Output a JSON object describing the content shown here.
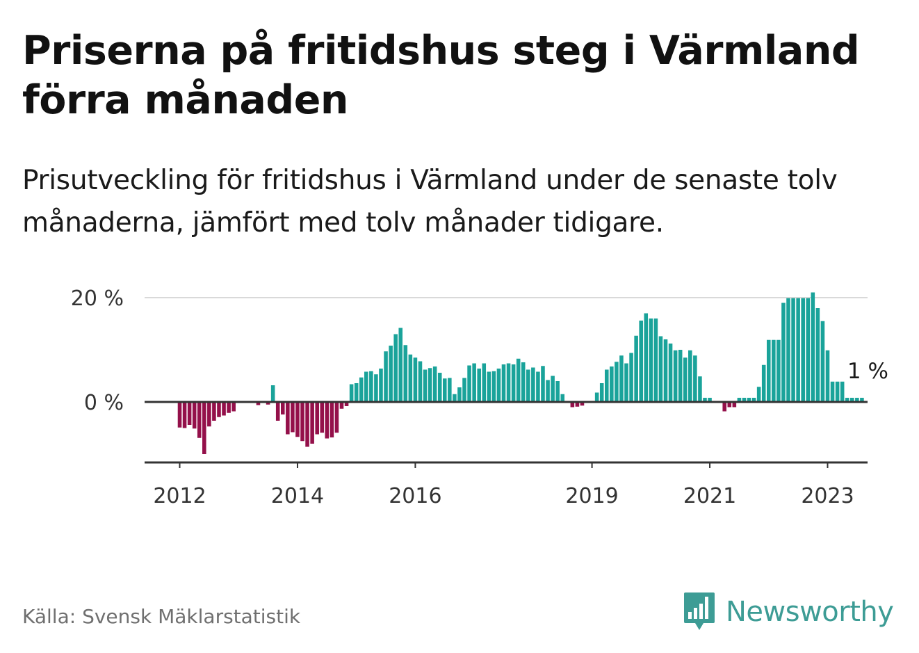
{
  "title": "Priserna på fritidshus steg i Värmland förra månaden",
  "subtitle": "Prisutveckling för fritidshus i Värmland under de senaste tolv månaderna, jämfört med tolv månader tidigare.",
  "source": "Källa: Svensk Mäklarstatistik",
  "brand": {
    "name": "Newsworthy",
    "icon": "bar-chart-speech-bubble-icon",
    "color": "#3d9c95"
  },
  "colors": {
    "positive": "#1aa39a",
    "negative": "#94104a",
    "baseline": "#333333",
    "grid": "#d9d9d9"
  },
  "chart_data": {
    "type": "bar",
    "title": "",
    "xlabel": "",
    "ylabel": "",
    "unit": "%",
    "ylim": [
      -10.8,
      20.5
    ],
    "y_ticks": [
      {
        "value": 0,
        "label": "0 %"
      },
      {
        "value": 20,
        "label": "20 %"
      }
    ],
    "x_ticks": [
      {
        "date": "2012-01",
        "label": "2012"
      },
      {
        "date": "2014-01",
        "label": "2014"
      },
      {
        "date": "2016-01",
        "label": "2016"
      },
      {
        "date": "2019-01",
        "label": "2019"
      },
      {
        "date": "2021-01",
        "label": "2021"
      },
      {
        "date": "2023-01",
        "label": "2023"
      }
    ],
    "grid": "horizontal",
    "last_value_label": "1 %",
    "series": [
      {
        "start": "2011-12",
        "frequency": "monthly",
        "values": [
          null,
          -4.9,
          -5.0,
          -4.4,
          -5.1,
          -6.9,
          -10.0,
          -4.7,
          -3.6,
          -2.9,
          -2.6,
          -2.1,
          -1.8,
          0.2,
          0,
          0,
          0,
          -0.6,
          -0.2,
          -0.5,
          3.2,
          -3.6,
          -2.4,
          -6.2,
          -5.8,
          -6.7,
          -7.5,
          -8.6,
          -8.0,
          -6.2,
          -5.9,
          -7.0,
          -6.8,
          -5.9,
          -1.3,
          -0.8,
          3.4,
          3.6,
          4.7,
          5.8,
          5.9,
          5.3,
          6.4,
          9.7,
          10.8,
          13.0,
          14.2,
          10.9,
          9.1,
          8.5,
          7.8,
          6.2,
          6.5,
          6.8,
          5.6,
          4.5,
          4.6,
          1.5,
          2.8,
          4.6,
          7.0,
          7.4,
          6.4,
          7.4,
          5.8,
          5.9,
          6.4,
          7.2,
          7.4,
          7.2,
          8.3,
          7.6,
          6.2,
          6.6,
          5.8,
          6.9,
          4.2,
          5.0,
          4.0,
          1.5,
          0,
          -1.0,
          -0.9,
          -0.7,
          0,
          0,
          1.8,
          3.6,
          6.2,
          6.8,
          7.7,
          8.9,
          7.4,
          9.4,
          12.7,
          15.6,
          17.0,
          16.0,
          16.0,
          12.6,
          12.0,
          11.2,
          9.9,
          10.0,
          8.5,
          9.9,
          8.9,
          4.9,
          0.8,
          0.8,
          0,
          0,
          -1.8,
          -1.0,
          -1.0,
          0.8,
          0.8,
          0.8,
          0.8,
          2.9,
          7.1,
          11.9,
          11.9,
          11.9,
          19.0,
          19.9,
          19.9,
          19.9,
          19.9,
          19.9,
          21.0,
          18.0,
          15.5,
          9.9,
          3.9,
          3.9,
          3.9,
          0.8,
          0.8,
          0.8,
          0.8
        ]
      }
    ]
  }
}
